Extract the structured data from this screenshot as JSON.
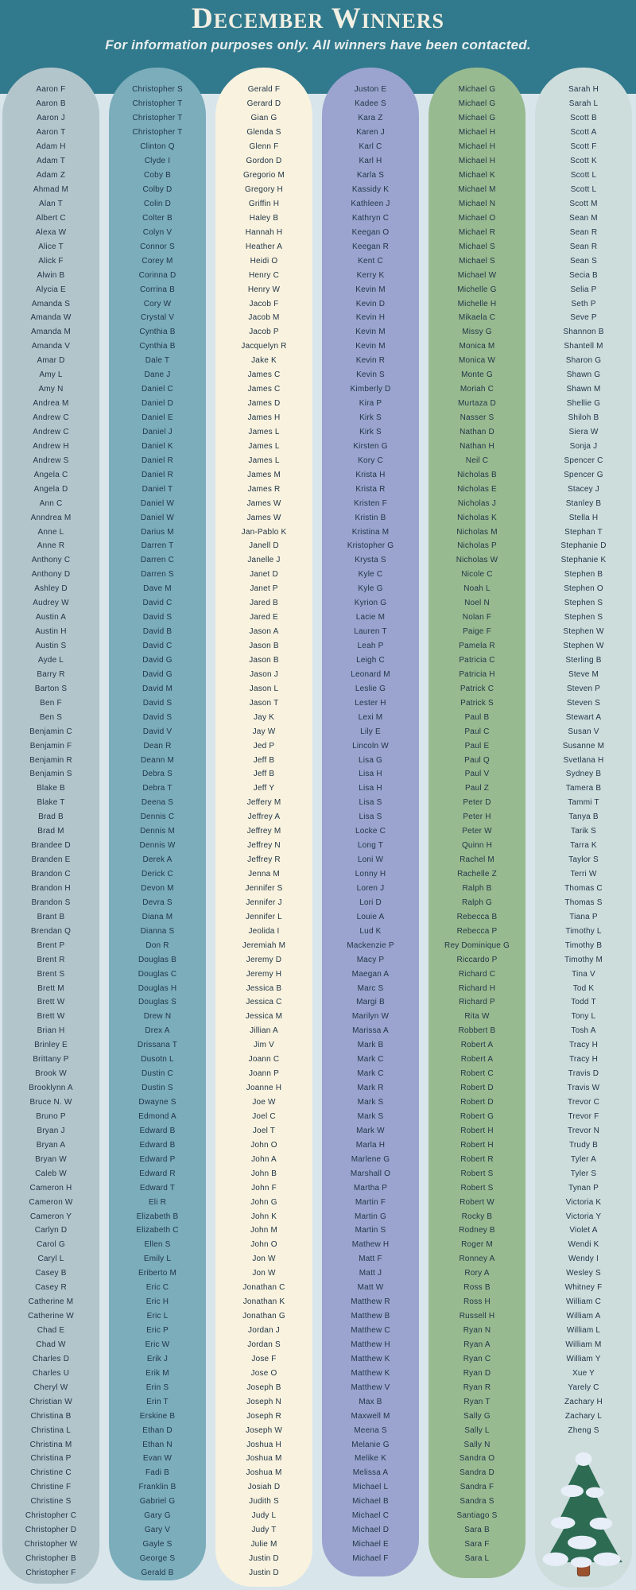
{
  "header": {
    "title": "December Winners",
    "subtitle": "For information purposes only. All winners have been contacted."
  },
  "colors": {
    "page_background": "#d8e5eb",
    "header_band": "#31798c",
    "title_text": "#f2efe3",
    "subtitle_text": "#e8eeee",
    "name_text": "#223648",
    "column_backgrounds": [
      "#b2c5cb",
      "#7badbb",
      "#f8f2de",
      "#9aa4ce",
      "#98ba90",
      "#cddddc"
    ],
    "tree_foliage": "#2d6b53",
    "tree_snow": "#e7eef7",
    "tree_trunk": "#9a512c",
    "tree_trunk_outline": "#6f3a1e"
  },
  "columns": [
    {
      "names": [
        "Aaron F",
        "Aaron B",
        "Aaron J",
        "Aaron T",
        "Adam H",
        "Adam T",
        "Adam Z",
        "Ahmad M",
        "Alan T",
        "Albert C",
        "Alexa W",
        "Alice T",
        "Alick F",
        "Alwin B",
        "Alycia E",
        "Amanda S",
        "Amanda W",
        "Amanda M",
        "Amanda V",
        "Amar D",
        "Amy L",
        "Amy N",
        "Andrea M",
        "Andrew C",
        "Andrew C",
        "Andrew H",
        "Andrew S",
        "Angela C",
        "Angela D",
        "Ann C",
        "Anndrea M",
        "Anne L",
        "Anne R",
        "Anthony C",
        "Anthony D",
        "Ashley D",
        "Audrey W",
        "Austin A",
        "Austin H",
        "Austin S",
        "Ayde L",
        "Barry R",
        "Barton S",
        "Ben F",
        "Ben S",
        "Benjamin C",
        "Benjamin F",
        "Benjamin R",
        "Benjamin S",
        "Blake B",
        "Blake T",
        "Brad B",
        "Brad M",
        "Brandee D",
        "Branden E",
        "Brandon C",
        "Brandon H",
        "Brandon S",
        "Brant B",
        "Brendan Q",
        "Brent P",
        "Brent R",
        "Brent S",
        "Brett M",
        "Brett W",
        "Brett W",
        "Brian H",
        "Brinley E",
        "Brittany P",
        "Brook W",
        "Brooklynn A",
        "Bruce N. W",
        "Bruno P",
        "Bryan J",
        "Bryan A",
        "Bryan W",
        "Caleb W",
        "Cameron H",
        "Cameron W",
        "Cameron Y",
        "Carlyn D",
        "Carol G",
        "Caryl L",
        "Casey B",
        "Casey R",
        "Catherine M",
        "Catherine W",
        "Chad E",
        "Chad W",
        "Charles D",
        "Charles U",
        "Cheryl W",
        "Christian W",
        "Christina B",
        "Christina L",
        "Christina M",
        "Christina P",
        "Christine C",
        "Christine F",
        "Christine S",
        "Christopher C",
        "Christopher D",
        "Christopher W",
        "Christopher B",
        "Christopher F"
      ]
    },
    {
      "names": [
        "Christopher S",
        "Christopher T",
        "Christopher T",
        "Christopher T",
        "Clinton Q",
        "Clyde I",
        "Coby B",
        "Colby D",
        "Colin D",
        "Colter B",
        "Colyn V",
        "Connor S",
        "Corey M",
        "Corinna D",
        "Corrina B",
        "Cory W",
        "Crystal V",
        "Cynthia B",
        "Cynthia B",
        "Dale T",
        "Dane J",
        "Daniel C",
        "Daniel D",
        "Daniel E",
        "Daniel J",
        "Daniel K",
        "Daniel R",
        "Daniel R",
        "Daniel T",
        "Daniel W",
        "Daniel W",
        "Darius M",
        "Darren T",
        "Darren C",
        "Darren S",
        "Dave M",
        "David C",
        "David S",
        "David B",
        "David C",
        "David G",
        "David G",
        "David M",
        "David S",
        "David S",
        "David V",
        "Dean R",
        "Deann M",
        "Debra S",
        "Debra T",
        "Deena S",
        "Dennis C",
        "Dennis M",
        "Dennis W",
        "Derek A",
        "Derick C",
        "Devon M",
        "Devra S",
        "Diana M",
        "Dianna S",
        "Don R",
        "Douglas B",
        "Douglas C",
        "Douglas H",
        "Douglas S",
        "Drew N",
        "Drex A",
        "Drissana T",
        "Dusotn L",
        "Dustin C",
        "Dustin S",
        "Dwayne S",
        "Edmond A",
        "Edward B",
        "Edward B",
        "Edward P",
        "Edward R",
        "Edward T",
        "Eli R",
        "Elizabeth B",
        "Elizabeth C",
        "Ellen S",
        "Emily L",
        "Eriberto M",
        "Eric C",
        "Eric H",
        "Eric L",
        "Eric P",
        "Eric W",
        "Erik J",
        "Erik M",
        "Erin S",
        "Erin T",
        "Erskine B",
        "Ethan D",
        "Ethan N",
        "Evan W",
        "Fadi B",
        "Franklin B",
        "Gabriel G",
        "Gary G",
        "Gary V",
        "Gayle S",
        "George S",
        "Gerald B"
      ]
    },
    {
      "names": [
        "Gerald F",
        "Gerard D",
        "Gian G",
        "Glenda S",
        "Glenn F",
        "Gordon D",
        "Gregorio M",
        "Gregory H",
        "Griffin H",
        "Haley B",
        "Hannah H",
        "Heather A",
        "Heidi O",
        "Henry C",
        "Henry W",
        "Jacob F",
        "Jacob M",
        "Jacob P",
        "Jacquelyn R",
        "Jake K",
        "James C",
        "James C",
        "James D",
        "James H",
        "James L",
        "James L",
        "James L",
        "James M",
        "James R",
        "James W",
        "James W",
        "Jan-Pablo K",
        "Janell D",
        "Janelle J",
        "Janet D",
        "Janet P",
        "Jared B",
        "Jared E",
        "Jason A",
        "Jason B",
        "Jason B",
        "Jason J",
        "Jason L",
        "Jason T",
        "Jay K",
        "Jay W",
        "Jed P",
        "Jeff B",
        "Jeff B",
        "Jeff Y",
        "Jeffery M",
        "Jeffrey A",
        "Jeffrey M",
        "Jeffrey N",
        "Jeffrey R",
        "Jenna M",
        "Jennifer S",
        "Jennifer J",
        "Jennifer L",
        "Jeolida I",
        "Jeremiah M",
        "Jeremy D",
        "Jeremy H",
        "Jessica B",
        "Jessica C",
        "Jessica M",
        "Jillian A",
        "Jim V",
        "Joann C",
        "Joann P",
        "Joanne H",
        "Joe W",
        "Joel C",
        "Joel T",
        "John O",
        "John A",
        "John B",
        "John F",
        "John G",
        "John K",
        "John M",
        "John O",
        "Jon W",
        "Jon W",
        "Jonathan C",
        "Jonathan K",
        "Jonathan G",
        "Jordan J",
        "Jordan S",
        "Jose F",
        "Jose O",
        "Joseph B",
        "Joseph N",
        "Joseph R",
        "Joseph W",
        "Joshua H",
        "Joshua M",
        "Joshua M",
        "Josiah D",
        "Judith S",
        "Judy L",
        "Judy T",
        "Julie M",
        "Justin D",
        "Justin D"
      ]
    },
    {
      "names": [
        "Juston E",
        "Kadee S",
        "Kara Z",
        "Karen J",
        "Karl C",
        "Karl H",
        "Karla S",
        "Kassidy K",
        "Kathleen J",
        "Kathryn C",
        "Keegan O",
        "Keegan R",
        "Kent C",
        "Kerry K",
        "Kevin M",
        "Kevin D",
        "Kevin H",
        "Kevin M",
        "Kevin M",
        "Kevin R",
        "Kevin S",
        "Kimberly D",
        "Kira P",
        "Kirk S",
        "Kirk S",
        "Kirsten G",
        "Kory C",
        "Krista H",
        "Krista R",
        "Kristen F",
        "Kristin B",
        "Kristina M",
        "Kristopher G",
        "Krysta S",
        "Kyle C",
        "Kyle G",
        "Kyrion G",
        "Lacie M",
        "Lauren T",
        "Leah P",
        "Leigh C",
        "Leonard M",
        "Leslie G",
        "Lester H",
        "Lexi M",
        "Lily E",
        "Lincoln W",
        "Lisa G",
        "Lisa H",
        "Lisa H",
        "Lisa S",
        "Lisa S",
        "Locke C",
        "Long T",
        "Loni W",
        "Lonny H",
        "Loren J",
        "Lori D",
        "Louie A",
        "Lud K",
        "Mackenzie P",
        "Macy P",
        "Maegan A",
        "Marc S",
        "Margi B",
        "Marilyn W",
        "Marissa A",
        "Mark B",
        "Mark C",
        "Mark C",
        "Mark R",
        "Mark S",
        "Mark S",
        "Mark W",
        "Marla H",
        "Marlene G",
        "Marshall O",
        "Martha P",
        "Martin F",
        "Martin G",
        "Martin S",
        "Mathew H",
        "Matt F",
        "Matt J",
        "Matt W",
        "Matthew R",
        "Matthew B",
        "Matthew C",
        "Matthew H",
        "Matthew K",
        "Matthew K",
        "Matthew V",
        "Max B",
        "Maxwell M",
        "Meena S",
        "Melanie G",
        "Melike K",
        "Melissa A",
        "Michael L",
        "Michael B",
        "Michael C",
        "Michael D",
        "Michael E",
        "Michael F"
      ]
    },
    {
      "names": [
        "Michael G",
        "Michael G",
        "Michael G",
        "Michael H",
        "Michael H",
        "Michael H",
        "Michael K",
        "Michael M",
        "Michael N",
        "Michael O",
        "Michael R",
        "Michael S",
        "Michael S",
        "Michael W",
        "Michelle G",
        "Michelle H",
        "Mikaela C",
        "Missy G",
        "Monica M",
        "Monica W",
        "Monte G",
        "Moriah C",
        "Murtaza D",
        "Nasser S",
        "Nathan D",
        "Nathan H",
        "Neil C",
        "Nicholas B",
        "Nicholas E",
        "Nicholas J",
        "Nicholas K",
        "Nicholas M",
        "Nicholas P",
        "Nicholas W",
        "Nicole C",
        "Noah L",
        "Noel N",
        "Nolan F",
        "Paige F",
        "Pamela R",
        "Patricia C",
        "Patricia H",
        "Patrick C",
        "Patrick S",
        "Paul B",
        "Paul C",
        "Paul E",
        "Paul Q",
        "Paul V",
        "Paul Z",
        "Peter D",
        "Peter H",
        "Peter W",
        "Quinn H",
        "Rachel M",
        "Rachelle Z",
        "Ralph B",
        "Ralph G",
        "Rebecca B",
        "Rebecca P",
        "Rey Dominique G",
        "Riccardo P",
        "Richard C",
        "Richard H",
        "Richard P",
        "Rita W",
        "Robbert B",
        "Robert A",
        "Robert A",
        "Robert C",
        "Robert D",
        "Robert D",
        "Robert G",
        "Robert H",
        "Robert H",
        "Robert R",
        "Robert S",
        "Robert S",
        "Robert W",
        "Rocky B",
        "Rodney B",
        "Roger M",
        "Ronney A",
        "Rory A",
        "Ross B",
        "Ross H",
        "Russell H",
        "Ryan N",
        "Ryan A",
        "Ryan C",
        "Ryan D",
        "Ryan R",
        "Ryan T",
        "Sally G",
        "Sally L",
        "Sally N",
        "Sandra O",
        "Sandra D",
        "Sandra F",
        "Sandra S",
        "Santiago S",
        "Sara B",
        "Sara F",
        "Sara L"
      ]
    },
    {
      "names": [
        "Sarah H",
        "Sarah L",
        "Scott B",
        "Scott A",
        "Scott F",
        "Scott K",
        "Scott L",
        "Scott L",
        "Scott M",
        "Sean M",
        "Sean R",
        "Sean R",
        "Sean S",
        "Secia B",
        "Selia P",
        "Seth P",
        "Seve P",
        "Shannon B",
        "Shantell M",
        "Sharon G",
        "Shawn G",
        "Shawn M",
        "Shellie G",
        "Shiloh B",
        "Siera W",
        "Sonja J",
        "Spencer C",
        "Spencer G",
        "Stacey J",
        "Stanley B",
        "Stella H",
        "Stephan T",
        "Stephanie D",
        "Stephanie K",
        "Stephen B",
        "Stephen O",
        "Stephen S",
        "Stephen S",
        "Stephen W",
        "Stephen W",
        "Sterling B",
        "Steve M",
        "Steven P",
        "Steven S",
        "Stewart A",
        "Susan V",
        "Susanne M",
        "Svetlana H",
        "Sydney B",
        "Tamera B",
        "Tammi T",
        "Tanya B",
        "Tarik S",
        "Tarra K",
        "Taylor S",
        "Terri W",
        "Thomas C",
        "Thomas S",
        "Tiana P",
        "Timothy L",
        "Timothy B",
        "Timothy M",
        "Tina V",
        "Tod K",
        "Todd T",
        "Tony L",
        "Tosh A",
        "Tracy H",
        "Tracy H",
        "Travis D",
        "Travis W",
        "Trevor C",
        "Trevor F",
        "Trevor N",
        "Trudy B",
        "Tyler A",
        "Tyler S",
        "Tynan P",
        "Victoria K",
        "Victoria Y",
        "Violet A",
        "Wendi K",
        "Wendy I",
        "Wesley S",
        "Whitney F",
        "William C",
        "William A",
        "William L",
        "William M",
        "William Y",
        "Xue Y",
        "Yarely C",
        "Zachary H",
        "Zachary L",
        "Zheng S"
      ]
    }
  ]
}
